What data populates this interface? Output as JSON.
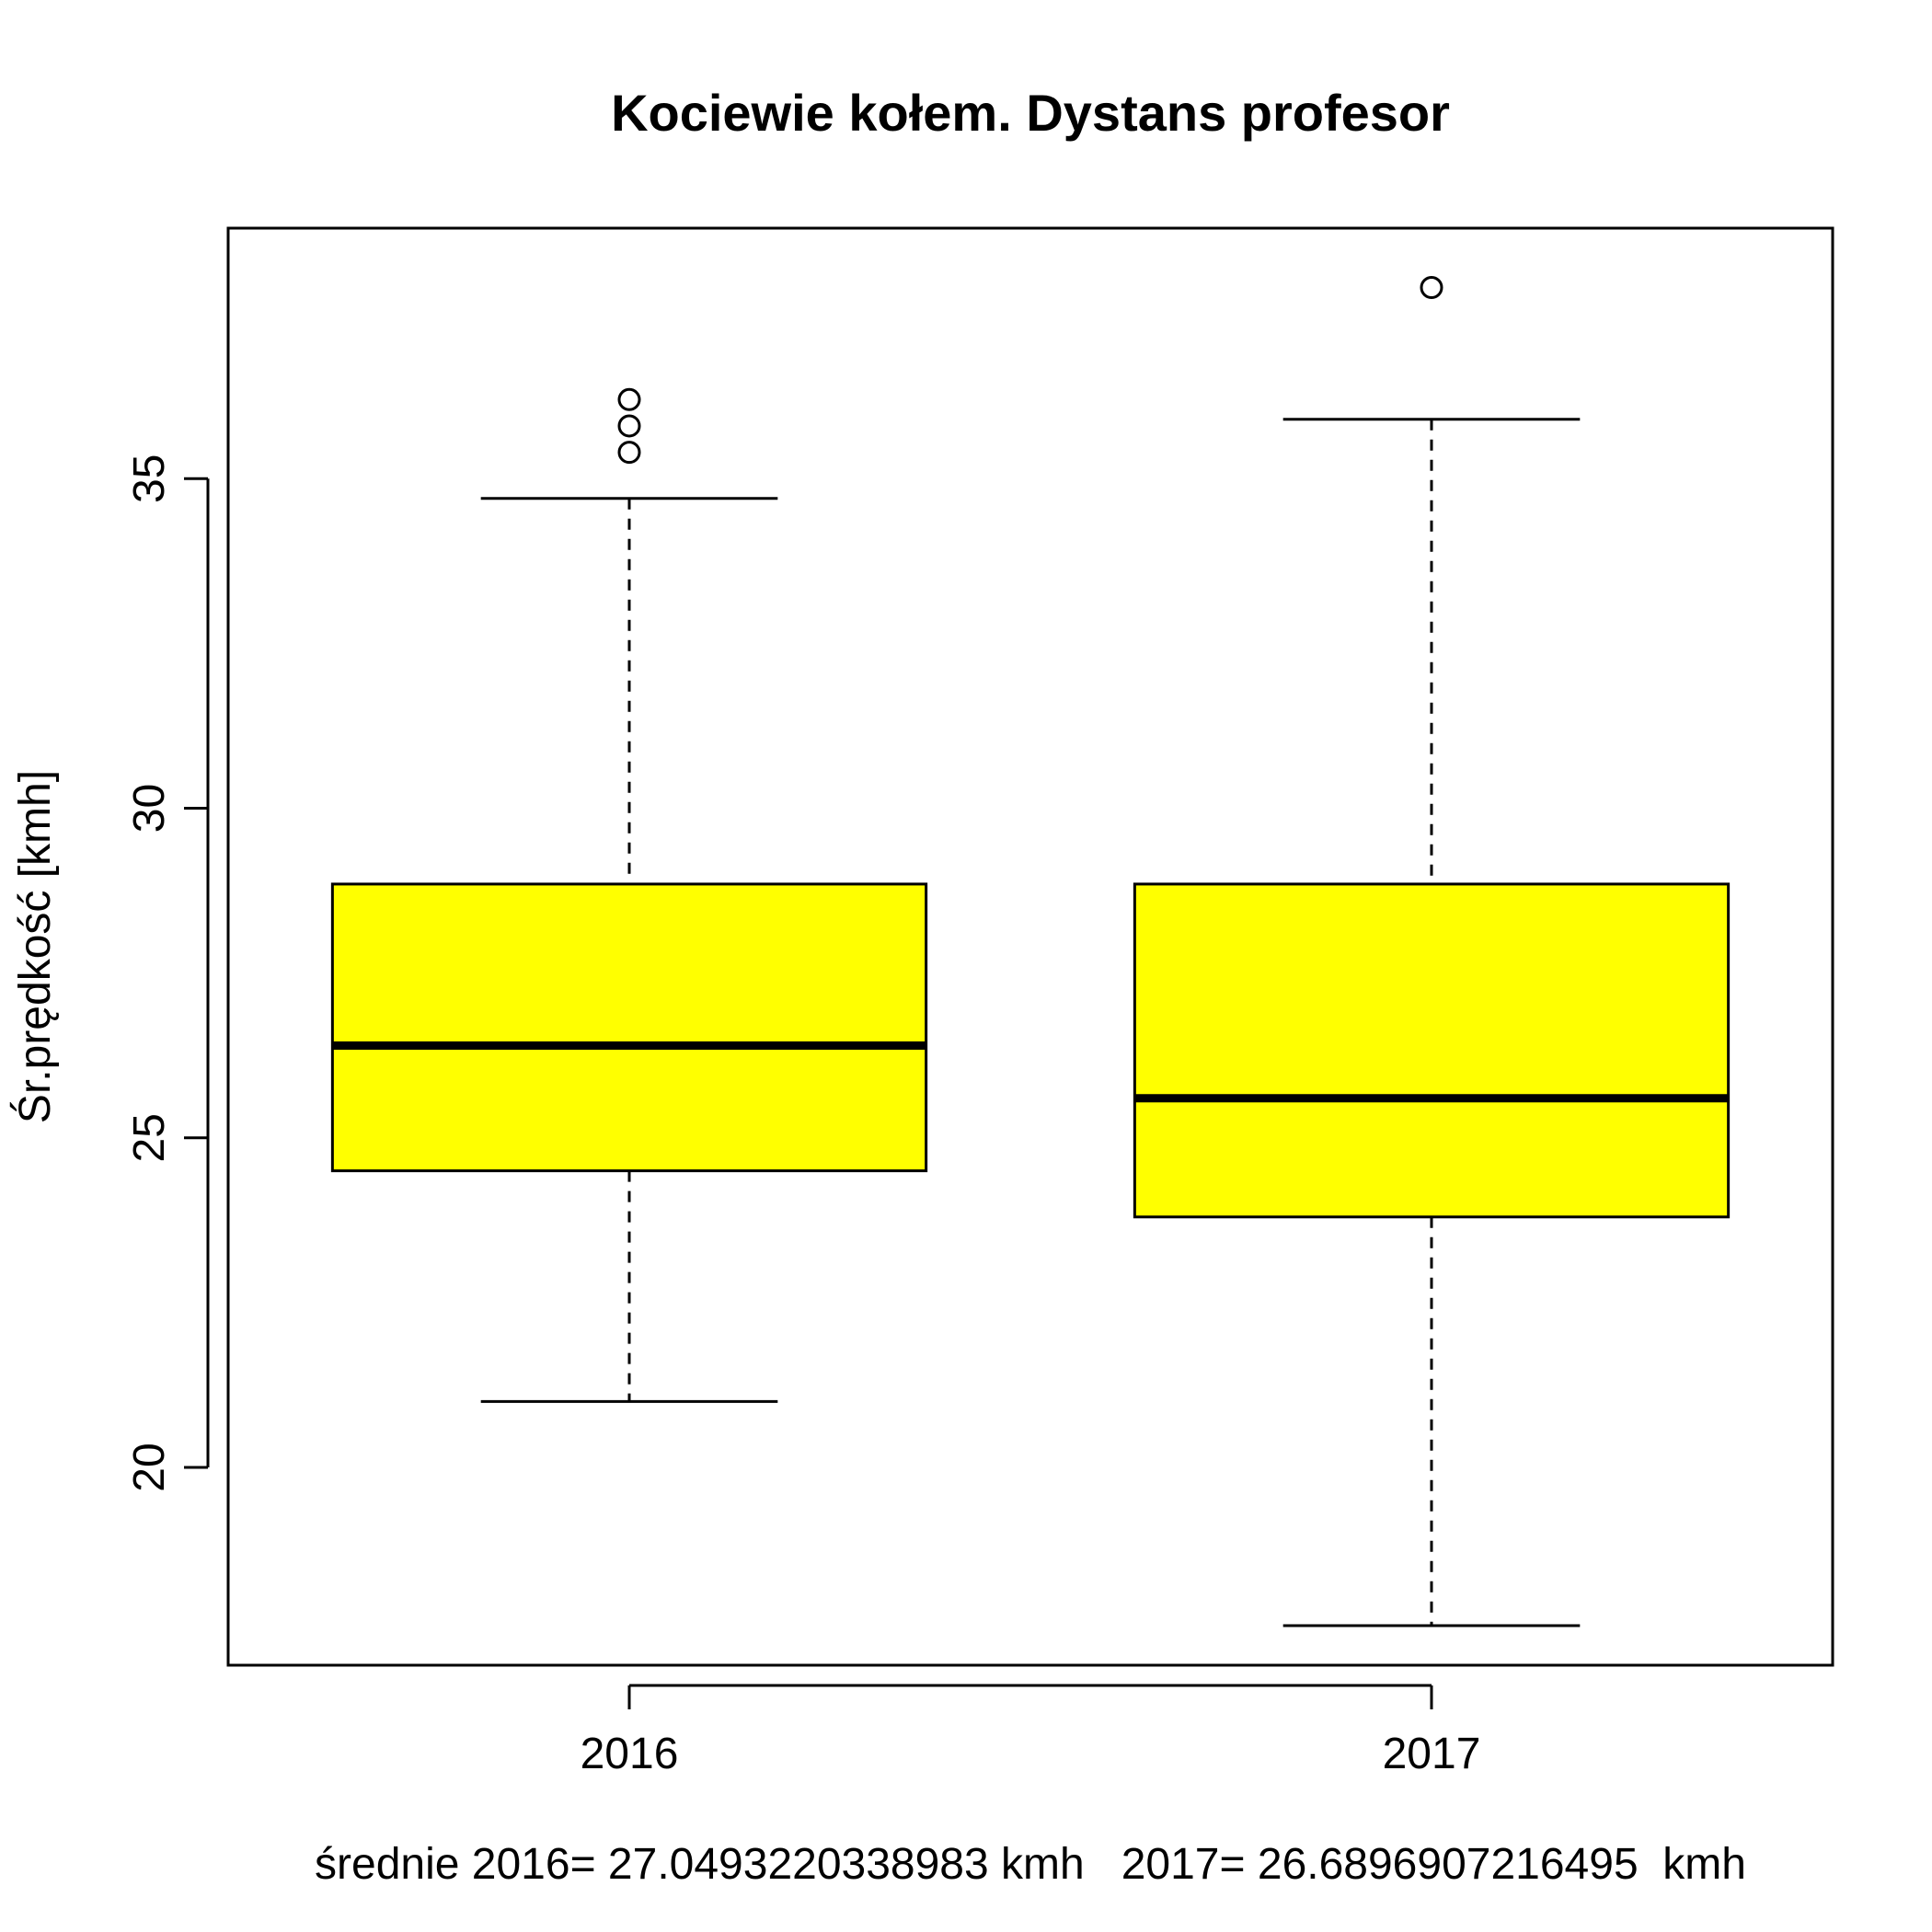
{
  "chart_data": {
    "type": "boxplot",
    "title": "Kociewie kołem. Dystans profesor",
    "xlabel": "średnie 2016= 27.0493220338983 kmh   2017= 26.6896907216495  kmh",
    "ylabel": "Śr.prędkość [kmh]",
    "ylim": [
      17.0,
      38.8
    ],
    "yticks": [
      20,
      25,
      30,
      35
    ],
    "ytick_labels": [
      "20",
      "25",
      "30",
      "35"
    ],
    "box_color": "#ffff00",
    "categories": [
      "2016",
      "2017"
    ],
    "boxes": [
      {
        "category": "2016",
        "whisker_low": 21.0,
        "q1": 24.5,
        "median": 26.4,
        "q3": 28.85,
        "whisker_high": 34.7,
        "outliers": [
          35.4,
          35.8,
          36.2
        ]
      },
      {
        "category": "2017",
        "whisker_low": 17.6,
        "q1": 23.8,
        "median": 25.6,
        "q3": 28.85,
        "whisker_high": 35.9,
        "outliers": [
          37.9
        ]
      }
    ]
  }
}
